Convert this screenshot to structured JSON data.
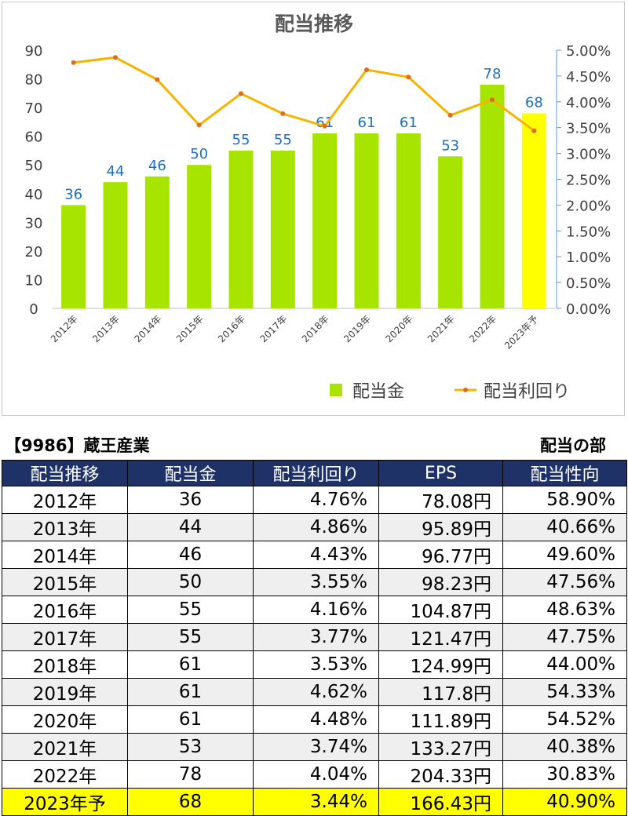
{
  "chart_data": {
    "type": "bar",
    "title": "配当推移",
    "categories": [
      "2012年",
      "2013年",
      "2014年",
      "2015年",
      "2016年",
      "2017年",
      "2018年",
      "2019年",
      "2020年",
      "2021年",
      "2022年",
      "2023年予"
    ],
    "series": [
      {
        "name": "配当金",
        "kind": "bar",
        "axis": "left",
        "values": [
          36,
          44,
          46,
          50,
          55,
          55,
          61,
          61,
          61,
          53,
          78,
          68
        ]
      },
      {
        "name": "配当利回り",
        "kind": "line",
        "axis": "right",
        "values": [
          4.76,
          4.86,
          4.43,
          3.55,
          4.16,
          3.77,
          3.53,
          4.62,
          4.48,
          3.74,
          4.04,
          3.44
        ]
      }
    ],
    "ylim_left": [
      0,
      90
    ],
    "yticks_left": [
      "0",
      "10",
      "20",
      "30",
      "40",
      "50",
      "60",
      "70",
      "80",
      "90"
    ],
    "ylim_right": [
      0,
      5.0
    ],
    "yticks_right": [
      "0.00%",
      "0.50%",
      "1.00%",
      "1.50%",
      "2.00%",
      "2.50%",
      "3.00%",
      "3.50%",
      "4.00%",
      "4.50%",
      "5.00%"
    ],
    "legend_position": "bottom-right",
    "grid": false,
    "highlight_category": "2023年予",
    "colors": {
      "bar": "#a7e400",
      "bar_highlight": "#ffff00",
      "line": "#f5b400",
      "marker": "#e26a1c",
      "data_label": "#1a6fc4",
      "axis_text": "#404040"
    }
  },
  "table": {
    "company": "【9986】蔵王産業",
    "section": "配当の部",
    "headers": [
      "配当推移",
      "配当金",
      "配当利回り",
      "EPS",
      "配当性向"
    ],
    "rows": [
      [
        "2012年",
        "36",
        "4.76%",
        "78.08円",
        "58.90%"
      ],
      [
        "2013年",
        "44",
        "4.86%",
        "95.89円",
        "40.66%"
      ],
      [
        "2014年",
        "46",
        "4.43%",
        "96.77円",
        "49.60%"
      ],
      [
        "2015年",
        "50",
        "3.55%",
        "98.23円",
        "47.56%"
      ],
      [
        "2016年",
        "55",
        "4.16%",
        "104.87円",
        "48.63%"
      ],
      [
        "2017年",
        "55",
        "3.77%",
        "121.47円",
        "47.75%"
      ],
      [
        "2018年",
        "61",
        "3.53%",
        "124.99円",
        "44.00%"
      ],
      [
        "2019年",
        "61",
        "4.62%",
        "117.8円",
        "54.33%"
      ],
      [
        "2020年",
        "61",
        "4.48%",
        "111.89円",
        "54.52%"
      ],
      [
        "2021年",
        "53",
        "3.74%",
        "133.27円",
        "40.38%"
      ],
      [
        "2022年",
        "78",
        "4.04%",
        "204.33円",
        "30.83%"
      ],
      [
        "2023年予",
        "68",
        "3.44%",
        "166.43円",
        "40.90%"
      ]
    ],
    "highlight_row": 11,
    "colors": {
      "header_bg": "#1f3268",
      "header_text": "#ffffff",
      "alt_row": "#efefef",
      "highlight": "#ffff00"
    }
  }
}
